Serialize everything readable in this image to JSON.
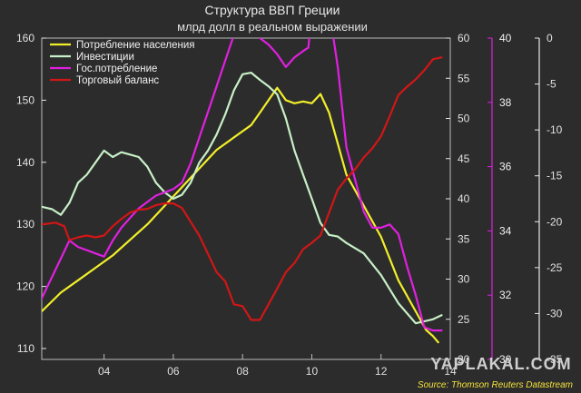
{
  "chart_data": {
    "type": "line",
    "title": "Структура ВВП Греции",
    "subtitle": "млрд долл в реальном выражении",
    "source": "Source: Thomson Reuters Datastream",
    "watermark": "YAPLAKAL.COM",
    "grid": false,
    "legend_position": "top-left",
    "x_range": [
      2002.2,
      2014.0
    ],
    "x_ticks": [
      {
        "value": 2004,
        "label": "04"
      },
      {
        "value": 2006,
        "label": "06"
      },
      {
        "value": 2008,
        "label": "08"
      },
      {
        "value": 2010,
        "label": "10"
      },
      {
        "value": 2012,
        "label": "12"
      },
      {
        "value": 2014,
        "label": "14"
      }
    ],
    "axes": [
      {
        "id": "a1",
        "side": "left",
        "ticks": [
          110,
          120,
          130,
          140,
          150,
          160
        ],
        "color": "#e8e8e8"
      },
      {
        "id": "a2",
        "side": "right",
        "ticks": [
          20,
          25,
          30,
          35,
          40,
          45,
          50,
          55,
          60
        ],
        "color": "#e8e8e8"
      },
      {
        "id": "a3",
        "side": "right",
        "ticks": [
          30,
          32,
          34,
          36,
          38,
          40
        ],
        "color": "#e020e0"
      },
      {
        "id": "a4",
        "side": "right",
        "ticks": [
          -35,
          -30,
          -25,
          -20,
          -15,
          -10,
          -5,
          0
        ],
        "color": "#e8e8e8"
      }
    ],
    "series": [
      {
        "name": "Потребление населения",
        "color": "#f2ef2a",
        "axis": "a1",
        "x": [
          2002.2,
          2002.75,
          2003.25,
          2003.75,
          2004.25,
          2004.75,
          2005.25,
          2005.75,
          2006.25,
          2006.75,
          2007.25,
          2007.75,
          2008.25,
          2008.5,
          2008.75,
          2009.0,
          2009.25,
          2009.5,
          2009.75,
          2010.0,
          2010.25,
          2010.5,
          2010.75,
          2011.0,
          2011.5,
          2012.0,
          2012.5,
          2013.0,
          2013.3,
          2013.5,
          2013.65
        ],
        "y": [
          116,
          119,
          121,
          123,
          125,
          127.5,
          130,
          133,
          136,
          139,
          142,
          144,
          146,
          148,
          150,
          152,
          150,
          149.5,
          149.8,
          149.5,
          151,
          148,
          143,
          138,
          133,
          128,
          121,
          116,
          113,
          112,
          111
        ]
      },
      {
        "name": "Инвестиции",
        "color": "#c8f0c8",
        "axis": "a2",
        "x": [
          2002.2,
          2002.5,
          2002.75,
          2003.0,
          2003.25,
          2003.5,
          2003.75,
          2004.0,
          2004.25,
          2004.5,
          2004.75,
          2005.0,
          2005.25,
          2005.5,
          2005.75,
          2006.0,
          2006.25,
          2006.5,
          2006.75,
          2007.0,
          2007.25,
          2007.5,
          2007.75,
          2008.0,
          2008.25,
          2008.5,
          2008.75,
          2009.0,
          2009.25,
          2009.5,
          2009.75,
          2010.0,
          2010.25,
          2010.5,
          2010.75,
          2011.0,
          2011.5,
          2012.0,
          2012.5,
          2013.0,
          2013.5,
          2013.75
        ],
        "y": [
          39,
          38.7,
          38,
          39.5,
          42,
          43,
          44.5,
          46,
          45.2,
          45.8,
          45.5,
          45.2,
          44,
          42,
          40.8,
          40,
          40.5,
          42,
          44.5,
          46,
          48,
          50.5,
          53.5,
          55.5,
          55.7,
          54.8,
          54,
          53,
          50,
          46,
          43,
          40,
          37,
          35.5,
          35.3,
          34.5,
          33.2,
          30.5,
          27,
          24.5,
          25,
          25.5
        ]
      },
      {
        "name": "Гос.потребление",
        "color": "#e020e0",
        "axis": "a3",
        "x": [
          2002.2,
          2002.6,
          2003.0,
          2003.25,
          2003.5,
          2003.75,
          2004.0,
          2004.25,
          2004.5,
          2004.75,
          2005.0,
          2005.25,
          2005.5,
          2005.75,
          2006.0,
          2006.25,
          2006.5,
          2006.75,
          2007.0,
          2007.25,
          2007.5,
          2007.75,
          2008.0,
          2008.25,
          2008.5,
          2008.75,
          2009.0,
          2009.25,
          2009.5,
          2009.75,
          2009.9,
          2010.1,
          2010.25,
          2010.5,
          2010.75,
          2011.0,
          2011.25,
          2011.5,
          2011.75,
          2012.0,
          2012.25,
          2012.5,
          2012.75,
          2013.0,
          2013.25,
          2013.5,
          2013.75
        ],
        "y": [
          31.9,
          32.8,
          33.7,
          33.5,
          33.4,
          33.3,
          33.2,
          33.7,
          34.1,
          34.4,
          34.7,
          34.9,
          35.1,
          35.2,
          35.3,
          35.5,
          36.1,
          36.9,
          37.7,
          38.5,
          39.3,
          40.1,
          40.8,
          40.4,
          40.0,
          39.8,
          39.5,
          39.1,
          39.4,
          39.6,
          39.7,
          41.8,
          41.6,
          40.9,
          39.1,
          36.6,
          35.6,
          34.6,
          34.1,
          34.1,
          34.2,
          33.9,
          32.9,
          32.0,
          31.0,
          30.9,
          30.9
        ]
      },
      {
        "name": "Торговый баланс",
        "color": "#d21616",
        "axis": "a4",
        "x": [
          2002.2,
          2002.6,
          2002.85,
          2003.0,
          2003.25,
          2003.5,
          2003.75,
          2004.0,
          2004.25,
          2004.5,
          2004.75,
          2005.0,
          2005.25,
          2005.5,
          2005.75,
          2006.0,
          2006.25,
          2006.5,
          2006.75,
          2007.0,
          2007.25,
          2007.5,
          2007.75,
          2008.0,
          2008.25,
          2008.5,
          2008.75,
          2009.0,
          2009.25,
          2009.5,
          2009.75,
          2010.0,
          2010.25,
          2010.5,
          2010.75,
          2011.0,
          2011.25,
          2011.5,
          2011.75,
          2012.0,
          2012.25,
          2012.5,
          2012.75,
          2013.0,
          2013.25,
          2013.5,
          2013.75
        ],
        "y": [
          -20.3,
          -20.1,
          -20.5,
          -22,
          -21.7,
          -21.5,
          -21.7,
          -21.5,
          -20.5,
          -19.7,
          -19,
          -18.7,
          -18.6,
          -18.2,
          -18,
          -18,
          -18.5,
          -20,
          -21.5,
          -23.5,
          -25.5,
          -26.5,
          -29,
          -29.2,
          -30.7,
          -30.7,
          -29,
          -27.3,
          -25.5,
          -24.5,
          -23,
          -22.3,
          -21.5,
          -19,
          -16.5,
          -15.3,
          -14.3,
          -13,
          -12,
          -10.7,
          -8.5,
          -6.2,
          -5.3,
          -4.5,
          -3.5,
          -2.3,
          -2.1
        ]
      }
    ]
  }
}
